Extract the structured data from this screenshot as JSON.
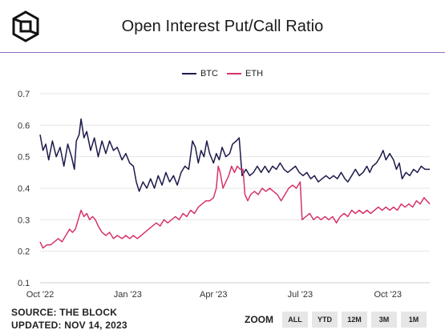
{
  "header": {
    "title": "Open Interest Put/Call Ratio",
    "logo_icon": "the-block-cube-logo-icon"
  },
  "footer": {
    "source": "SOURCE: THE BLOCK",
    "updated": "UPDATED: NOV 14, 2023"
  },
  "zoom": {
    "label": "ZOOM",
    "buttons": [
      "ALL",
      "YTD",
      "12M",
      "3M",
      "1M"
    ]
  },
  "chart_data": {
    "type": "line",
    "title": "Open Interest Put/Call Ratio",
    "xlabel": "",
    "ylabel": "",
    "ylim": [
      0.1,
      0.7
    ],
    "xlim": [
      "2022-10-01",
      "2023-11-14"
    ],
    "y_ticks": [
      "0.1",
      "0.2",
      "0.3",
      "0.4",
      "0.5",
      "0.6",
      "0.7"
    ],
    "x_ticks": [
      {
        "label": "Oct '22",
        "date": "2022-10-01"
      },
      {
        "label": "Jan '23",
        "date": "2023-01-01"
      },
      {
        "label": "Apr '23",
        "date": "2023-04-01"
      },
      {
        "label": "Jul '23",
        "date": "2023-07-01"
      },
      {
        "label": "Oct '23",
        "date": "2023-10-01"
      }
    ],
    "grid": {
      "horizontal": true,
      "vertical": false
    },
    "legend_position": "top-center",
    "series": [
      {
        "name": "BTC",
        "color": "#1c1a4b",
        "points": [
          [
            "2022-10-01",
            0.57
          ],
          [
            "2022-10-04",
            0.52
          ],
          [
            "2022-10-07",
            0.54
          ],
          [
            "2022-10-10",
            0.49
          ],
          [
            "2022-10-14",
            0.55
          ],
          [
            "2022-10-18",
            0.5
          ],
          [
            "2022-10-22",
            0.53
          ],
          [
            "2022-10-26",
            0.47
          ],
          [
            "2022-10-30",
            0.54
          ],
          [
            "2022-11-03",
            0.5
          ],
          [
            "2022-11-06",
            0.46
          ],
          [
            "2022-11-08",
            0.55
          ],
          [
            "2022-11-11",
            0.57
          ],
          [
            "2022-11-13",
            0.62
          ],
          [
            "2022-11-16",
            0.56
          ],
          [
            "2022-11-19",
            0.58
          ],
          [
            "2022-11-23",
            0.52
          ],
          [
            "2022-11-27",
            0.56
          ],
          [
            "2022-12-01",
            0.5
          ],
          [
            "2022-12-05",
            0.55
          ],
          [
            "2022-12-09",
            0.51
          ],
          [
            "2022-12-13",
            0.55
          ],
          [
            "2022-12-17",
            0.52
          ],
          [
            "2022-12-21",
            0.53
          ],
          [
            "2022-12-26",
            0.49
          ],
          [
            "2022-12-30",
            0.51
          ],
          [
            "2023-01-03",
            0.48
          ],
          [
            "2023-01-07",
            0.47
          ],
          [
            "2023-01-10",
            0.42
          ],
          [
            "2023-01-13",
            0.39
          ],
          [
            "2023-01-17",
            0.42
          ],
          [
            "2023-01-21",
            0.4
          ],
          [
            "2023-01-25",
            0.43
          ],
          [
            "2023-01-29",
            0.4
          ],
          [
            "2023-02-02",
            0.44
          ],
          [
            "2023-02-06",
            0.41
          ],
          [
            "2023-02-10",
            0.45
          ],
          [
            "2023-02-14",
            0.42
          ],
          [
            "2023-02-18",
            0.44
          ],
          [
            "2023-02-22",
            0.41
          ],
          [
            "2023-02-26",
            0.45
          ],
          [
            "2023-03-02",
            0.47
          ],
          [
            "2023-03-06",
            0.46
          ],
          [
            "2023-03-10",
            0.55
          ],
          [
            "2023-03-13",
            0.53
          ],
          [
            "2023-03-16",
            0.48
          ],
          [
            "2023-03-19",
            0.52
          ],
          [
            "2023-03-22",
            0.5
          ],
          [
            "2023-03-25",
            0.55
          ],
          [
            "2023-03-28",
            0.51
          ],
          [
            "2023-04-01",
            0.48
          ],
          [
            "2023-04-04",
            0.51
          ],
          [
            "2023-04-07",
            0.49
          ],
          [
            "2023-04-10",
            0.53
          ],
          [
            "2023-04-14",
            0.5
          ],
          [
            "2023-04-18",
            0.51
          ],
          [
            "2023-04-21",
            0.54
          ],
          [
            "2023-04-25",
            0.55
          ],
          [
            "2023-04-28",
            0.56
          ],
          [
            "2023-05-01",
            0.44
          ],
          [
            "2023-05-05",
            0.46
          ],
          [
            "2023-05-09",
            0.44
          ],
          [
            "2023-05-13",
            0.45
          ],
          [
            "2023-05-17",
            0.47
          ],
          [
            "2023-05-21",
            0.45
          ],
          [
            "2023-05-25",
            0.47
          ],
          [
            "2023-05-29",
            0.45
          ],
          [
            "2023-06-02",
            0.47
          ],
          [
            "2023-06-06",
            0.46
          ],
          [
            "2023-06-10",
            0.48
          ],
          [
            "2023-06-14",
            0.46
          ],
          [
            "2023-06-18",
            0.45
          ],
          [
            "2023-06-22",
            0.46
          ],
          [
            "2023-06-26",
            0.47
          ],
          [
            "2023-06-30",
            0.45
          ],
          [
            "2023-07-04",
            0.44
          ],
          [
            "2023-07-08",
            0.45
          ],
          [
            "2023-07-12",
            0.43
          ],
          [
            "2023-07-16",
            0.44
          ],
          [
            "2023-07-20",
            0.42
          ],
          [
            "2023-07-24",
            0.43
          ],
          [
            "2023-07-28",
            0.44
          ],
          [
            "2023-08-01",
            0.43
          ],
          [
            "2023-08-05",
            0.44
          ],
          [
            "2023-08-09",
            0.43
          ],
          [
            "2023-08-13",
            0.45
          ],
          [
            "2023-08-17",
            0.43
          ],
          [
            "2023-08-20",
            0.42
          ],
          [
            "2023-08-24",
            0.44
          ],
          [
            "2023-08-28",
            0.46
          ],
          [
            "2023-09-01",
            0.44
          ],
          [
            "2023-09-05",
            0.45
          ],
          [
            "2023-09-09",
            0.47
          ],
          [
            "2023-09-12",
            0.45
          ],
          [
            "2023-09-15",
            0.47
          ],
          [
            "2023-09-19",
            0.48
          ],
          [
            "2023-09-23",
            0.5
          ],
          [
            "2023-09-26",
            0.52
          ],
          [
            "2023-09-29",
            0.49
          ],
          [
            "2023-10-03",
            0.51
          ],
          [
            "2023-10-07",
            0.49
          ],
          [
            "2023-10-10",
            0.46
          ],
          [
            "2023-10-13",
            0.48
          ],
          [
            "2023-10-16",
            0.43
          ],
          [
            "2023-10-20",
            0.45
          ],
          [
            "2023-10-24",
            0.44
          ],
          [
            "2023-10-28",
            0.46
          ],
          [
            "2023-11-01",
            0.45
          ],
          [
            "2023-11-05",
            0.47
          ],
          [
            "2023-11-09",
            0.46
          ],
          [
            "2023-11-14",
            0.46
          ]
        ]
      },
      {
        "name": "ETH",
        "color": "#d6336c",
        "points": [
          [
            "2022-10-01",
            0.23
          ],
          [
            "2022-10-04",
            0.21
          ],
          [
            "2022-10-08",
            0.22
          ],
          [
            "2022-10-12",
            0.22
          ],
          [
            "2022-10-16",
            0.23
          ],
          [
            "2022-10-20",
            0.24
          ],
          [
            "2022-10-24",
            0.23
          ],
          [
            "2022-10-28",
            0.25
          ],
          [
            "2022-11-01",
            0.27
          ],
          [
            "2022-11-04",
            0.26
          ],
          [
            "2022-11-07",
            0.27
          ],
          [
            "2022-11-10",
            0.3
          ],
          [
            "2022-11-13",
            0.33
          ],
          [
            "2022-11-16",
            0.31
          ],
          [
            "2022-11-19",
            0.32
          ],
          [
            "2022-11-22",
            0.3
          ],
          [
            "2022-11-25",
            0.31
          ],
          [
            "2022-11-28",
            0.3
          ],
          [
            "2022-12-01",
            0.28
          ],
          [
            "2022-12-05",
            0.26
          ],
          [
            "2022-12-09",
            0.25
          ],
          [
            "2022-12-13",
            0.26
          ],
          [
            "2022-12-17",
            0.24
          ],
          [
            "2022-12-21",
            0.25
          ],
          [
            "2022-12-26",
            0.24
          ],
          [
            "2022-12-30",
            0.25
          ],
          [
            "2023-01-03",
            0.24
          ],
          [
            "2023-01-07",
            0.25
          ],
          [
            "2023-01-11",
            0.24
          ],
          [
            "2023-01-15",
            0.25
          ],
          [
            "2023-01-19",
            0.26
          ],
          [
            "2023-01-23",
            0.27
          ],
          [
            "2023-01-27",
            0.28
          ],
          [
            "2023-01-31",
            0.29
          ],
          [
            "2023-02-04",
            0.28
          ],
          [
            "2023-02-08",
            0.3
          ],
          [
            "2023-02-12",
            0.29
          ],
          [
            "2023-02-16",
            0.3
          ],
          [
            "2023-02-20",
            0.31
          ],
          [
            "2023-02-24",
            0.3
          ],
          [
            "2023-02-28",
            0.32
          ],
          [
            "2023-03-04",
            0.31
          ],
          [
            "2023-03-08",
            0.33
          ],
          [
            "2023-03-12",
            0.32
          ],
          [
            "2023-03-16",
            0.34
          ],
          [
            "2023-03-20",
            0.35
          ],
          [
            "2023-03-24",
            0.36
          ],
          [
            "2023-03-28",
            0.36
          ],
          [
            "2023-04-01",
            0.37
          ],
          [
            "2023-04-04",
            0.4
          ],
          [
            "2023-04-06",
            0.47
          ],
          [
            "2023-04-08",
            0.45
          ],
          [
            "2023-04-11",
            0.4
          ],
          [
            "2023-04-14",
            0.42
          ],
          [
            "2023-04-17",
            0.44
          ],
          [
            "2023-04-20",
            0.47
          ],
          [
            "2023-04-23",
            0.45
          ],
          [
            "2023-04-26",
            0.47
          ],
          [
            "2023-04-29",
            0.46
          ],
          [
            "2023-05-02",
            0.46
          ],
          [
            "2023-05-04",
            0.38
          ],
          [
            "2023-05-07",
            0.36
          ],
          [
            "2023-05-10",
            0.38
          ],
          [
            "2023-05-14",
            0.39
          ],
          [
            "2023-05-18",
            0.38
          ],
          [
            "2023-05-22",
            0.4
          ],
          [
            "2023-05-26",
            0.39
          ],
          [
            "2023-05-30",
            0.4
          ],
          [
            "2023-06-03",
            0.39
          ],
          [
            "2023-06-07",
            0.38
          ],
          [
            "2023-06-11",
            0.36
          ],
          [
            "2023-06-15",
            0.38
          ],
          [
            "2023-06-19",
            0.4
          ],
          [
            "2023-06-23",
            0.41
          ],
          [
            "2023-06-27",
            0.4
          ],
          [
            "2023-07-01",
            0.42
          ],
          [
            "2023-07-03",
            0.3
          ],
          [
            "2023-07-07",
            0.31
          ],
          [
            "2023-07-11",
            0.32
          ],
          [
            "2023-07-15",
            0.3
          ],
          [
            "2023-07-19",
            0.31
          ],
          [
            "2023-07-23",
            0.3
          ],
          [
            "2023-07-27",
            0.31
          ],
          [
            "2023-07-31",
            0.3
          ],
          [
            "2023-08-04",
            0.31
          ],
          [
            "2023-08-08",
            0.29
          ],
          [
            "2023-08-12",
            0.31
          ],
          [
            "2023-08-16",
            0.32
          ],
          [
            "2023-08-20",
            0.31
          ],
          [
            "2023-08-24",
            0.33
          ],
          [
            "2023-08-28",
            0.32
          ],
          [
            "2023-09-01",
            0.33
          ],
          [
            "2023-09-05",
            0.32
          ],
          [
            "2023-09-09",
            0.33
          ],
          [
            "2023-09-13",
            0.32
          ],
          [
            "2023-09-17",
            0.33
          ],
          [
            "2023-09-21",
            0.34
          ],
          [
            "2023-09-25",
            0.33
          ],
          [
            "2023-09-29",
            0.34
          ],
          [
            "2023-10-03",
            0.33
          ],
          [
            "2023-10-07",
            0.34
          ],
          [
            "2023-10-11",
            0.33
          ],
          [
            "2023-10-15",
            0.35
          ],
          [
            "2023-10-19",
            0.34
          ],
          [
            "2023-10-23",
            0.35
          ],
          [
            "2023-10-27",
            0.34
          ],
          [
            "2023-10-31",
            0.36
          ],
          [
            "2023-11-04",
            0.35
          ],
          [
            "2023-11-08",
            0.37
          ],
          [
            "2023-11-11",
            0.36
          ],
          [
            "2023-11-14",
            0.35
          ]
        ]
      }
    ]
  }
}
